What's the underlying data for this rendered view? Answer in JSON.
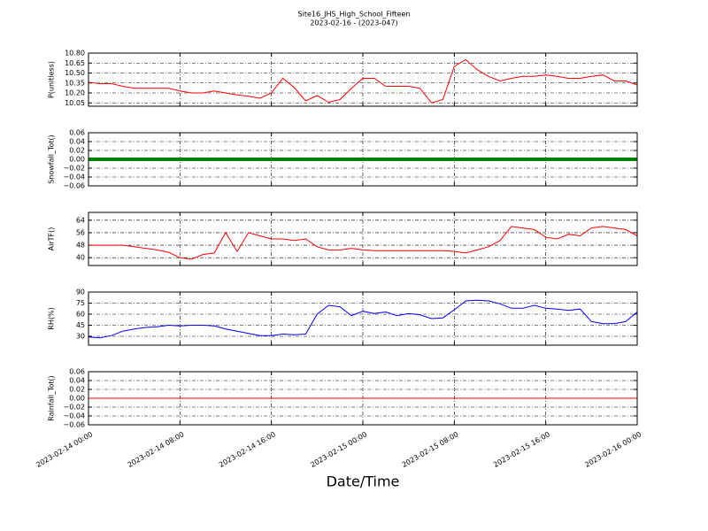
{
  "title": "Site16_JHS_High_School_Fifteen",
  "subtitle": "2023-02-16 - (2023-047)",
  "xlabel": "Date/Time",
  "xlim": [
    "2023-02-14 00:00",
    "2023-02-16 00:00"
  ],
  "xticks": [
    "2023-02-14 00:00",
    "2023-02-14 08:00",
    "2023-02-14 16:00",
    "2023-02-15 00:00",
    "2023-02-15 08:00",
    "2023-02-15 16:00",
    "2023-02-16 00:00"
  ],
  "x": [
    "2023-02-14 00:00",
    "2023-02-14 01:00",
    "2023-02-14 02:00",
    "2023-02-14 03:00",
    "2023-02-14 04:00",
    "2023-02-14 05:00",
    "2023-02-14 06:00",
    "2023-02-14 07:00",
    "2023-02-14 08:00",
    "2023-02-14 09:00",
    "2023-02-14 10:00",
    "2023-02-14 11:00",
    "2023-02-14 12:00",
    "2023-02-14 13:00",
    "2023-02-14 14:00",
    "2023-02-14 15:00",
    "2023-02-14 16:00",
    "2023-02-14 17:00",
    "2023-02-14 18:00",
    "2023-02-14 19:00",
    "2023-02-14 20:00",
    "2023-02-14 21:00",
    "2023-02-14 22:00",
    "2023-02-14 23:00",
    "2023-02-15 00:00",
    "2023-02-15 01:00",
    "2023-02-15 02:00",
    "2023-02-15 03:00",
    "2023-02-15 04:00",
    "2023-02-15 05:00",
    "2023-02-15 06:00",
    "2023-02-15 07:00",
    "2023-02-15 08:00",
    "2023-02-15 09:00",
    "2023-02-15 10:00",
    "2023-02-15 11:00",
    "2023-02-15 12:00",
    "2023-02-15 13:00",
    "2023-02-15 14:00",
    "2023-02-15 15:00",
    "2023-02-15 16:00",
    "2023-02-15 17:00",
    "2023-02-15 18:00",
    "2023-02-15 19:00",
    "2023-02-15 20:00",
    "2023-02-15 21:00",
    "2023-02-15 22:00",
    "2023-02-15 23:00",
    "2023-02-16 00:00"
  ],
  "grid": true,
  "chart_data": [
    {
      "type": "line",
      "ylabel": "P(unitless)",
      "ylim": [
        10.0,
        10.8
      ],
      "yticks": [
        10.05,
        {
          "value": 10.2,
          "label": "10.20"
        },
        10.35,
        {
          "value": 10.5,
          "label": "10.50"
        },
        10.65,
        {
          "value": 10.8,
          "label": "10.80"
        }
      ],
      "series": [
        {
          "color": "#ff0000",
          "values": [
            10.36,
            10.34,
            10.34,
            10.3,
            10.27,
            10.27,
            10.27,
            10.27,
            10.23,
            10.2,
            10.2,
            10.23,
            10.2,
            10.17,
            10.15,
            10.12,
            10.2,
            10.42,
            10.28,
            10.08,
            10.16,
            10.06,
            10.1,
            10.27,
            10.42,
            10.42,
            10.3,
            10.3,
            10.3,
            10.27,
            10.05,
            10.1,
            10.6,
            10.7,
            10.55,
            10.45,
            10.38,
            10.42,
            10.45,
            10.45,
            10.47,
            10.45,
            10.42,
            10.42,
            10.45,
            10.47,
            10.38,
            10.38,
            10.32
          ]
        }
      ]
    },
    {
      "type": "line",
      "ylabel": "Snowfall_Tot()",
      "ylim": [
        -0.06,
        0.06
      ],
      "yticks": [
        {
          "value": -0.06,
          "label": "−0.06"
        },
        {
          "value": -0.04,
          "label": "−0.04"
        },
        {
          "value": -0.02,
          "label": "−0.02"
        },
        {
          "value": 0,
          "label": "0.00"
        },
        0.02,
        0.04,
        0.06
      ],
      "series": [
        {
          "color": "#008000",
          "values": [
            0,
            0,
            0,
            0,
            0,
            0,
            0,
            0,
            0,
            0,
            0,
            0,
            0,
            0,
            0,
            0,
            0,
            0,
            0,
            0,
            0,
            0,
            0,
            0,
            0,
            0,
            0,
            0,
            0,
            0,
            0,
            0,
            0,
            0,
            0,
            0,
            0,
            0,
            0,
            0,
            0,
            0,
            0,
            0,
            0,
            0,
            0,
            0,
            0
          ]
        }
      ]
    },
    {
      "type": "line",
      "ylabel": "AirTF()",
      "ylim": [
        35,
        69
      ],
      "yticks": [
        40,
        48,
        56,
        64
      ],
      "series": [
        {
          "color": "#ff0000",
          "values": [
            48,
            48,
            48,
            48,
            47,
            46,
            45,
            43.5,
            40,
            39,
            42,
            43,
            56,
            44,
            56,
            54,
            52,
            52,
            51,
            52,
            47,
            45,
            45,
            46,
            45,
            44.5,
            44.5,
            44.5,
            44.5,
            44.5,
            44.5,
            44.5,
            44,
            43,
            45,
            47,
            51,
            60,
            59,
            58,
            53,
            52,
            55,
            54,
            59,
            60,
            59,
            58,
            54
          ]
        }
      ]
    },
    {
      "type": "line",
      "ylabel": "RH(%)",
      "ylim": [
        18,
        90
      ],
      "yticks": [
        30,
        45,
        60,
        75,
        90
      ],
      "series": [
        {
          "color": "#0000ff",
          "values": [
            29,
            28,
            31,
            37,
            40,
            42,
            43,
            45,
            44,
            45,
            45,
            44,
            40,
            37,
            34,
            31,
            31,
            33,
            32,
            33,
            60,
            72,
            70,
            58,
            64,
            61,
            63,
            58,
            61,
            59,
            54,
            55,
            66,
            78,
            79,
            78,
            74,
            68,
            68,
            72,
            68,
            67,
            65,
            67,
            50,
            47,
            47,
            50,
            63
          ]
        }
      ]
    },
    {
      "type": "line",
      "ylabel": "Rainfall_Tot()",
      "ylim": [
        -0.06,
        0.06
      ],
      "yticks": [
        {
          "value": -0.06,
          "label": "−0.06"
        },
        {
          "value": -0.04,
          "label": "−0.04"
        },
        {
          "value": -0.02,
          "label": "−0.02"
        },
        {
          "value": 0,
          "label": "0.00"
        },
        0.02,
        0.04,
        0.06
      ],
      "series": [
        {
          "color": "#ff0000",
          "values": [
            0,
            0,
            0,
            0,
            0,
            0,
            0,
            0,
            0,
            0,
            0,
            0,
            0,
            0,
            0,
            0,
            0,
            0,
            0,
            0,
            0,
            0,
            0,
            0,
            0,
            0,
            0,
            0,
            0,
            0,
            0,
            0,
            0,
            0,
            0,
            0,
            0,
            0,
            0,
            0,
            0,
            0,
            0,
            0,
            0,
            0,
            0,
            0,
            0
          ]
        }
      ]
    }
  ]
}
